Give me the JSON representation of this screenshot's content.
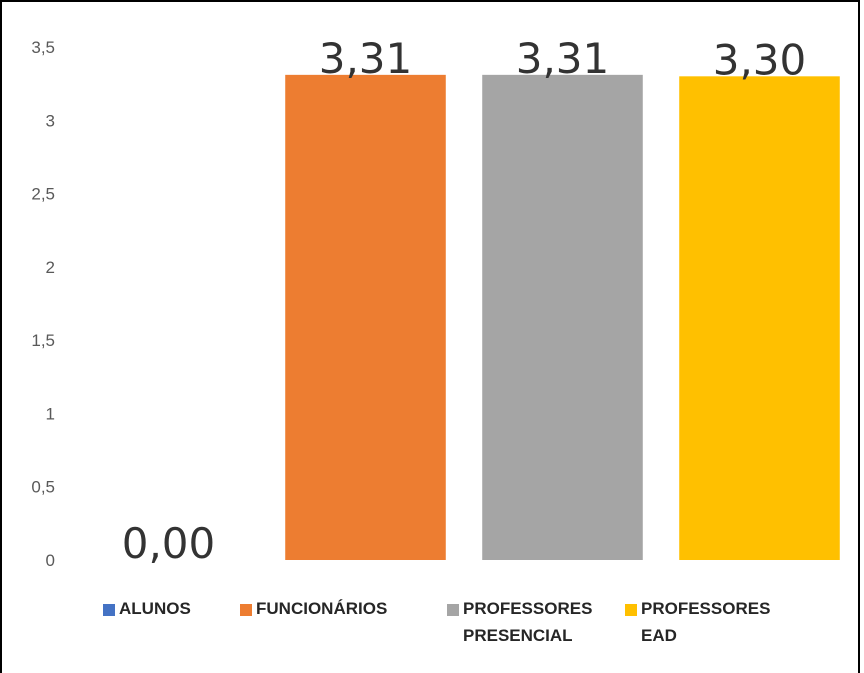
{
  "chart_data": {
    "type": "bar",
    "categories": [
      "ALUNOS",
      "FUNCIONÁRIOS",
      "PROFESSORES PRESENCIAL",
      "PROFESSORES EAD"
    ],
    "values": [
      0.0,
      3.31,
      3.31,
      3.3
    ],
    "data_labels": [
      "0,00",
      "3,31",
      "3,31",
      "3,30"
    ],
    "colors": [
      "#4472C4",
      "#ED7D31",
      "#A5A5A5",
      "#FFC000"
    ],
    "ylim": [
      0,
      3.5
    ],
    "yticks": [
      0,
      0.5,
      1,
      1.5,
      2,
      2.5,
      3,
      3.5
    ],
    "ytick_labels": [
      "0",
      "0,5",
      "1",
      "1,5",
      "2",
      "2,5",
      "3",
      "3,5"
    ],
    "grid": false,
    "legend_position": "bottom",
    "title": "",
    "xlabel": "",
    "ylabel": ""
  },
  "legend": {
    "items": [
      {
        "lines": [
          "ALUNOS"
        ],
        "color": "#4472C4"
      },
      {
        "lines": [
          "FUNCIONÁRIOS"
        ],
        "color": "#ED7D31"
      },
      {
        "lines": [
          "PROFESSORES",
          "PRESENCIAL"
        ],
        "color": "#A5A5A5"
      },
      {
        "lines": [
          "PROFESSORES",
          "EAD"
        ],
        "color": "#FFC000"
      }
    ]
  }
}
